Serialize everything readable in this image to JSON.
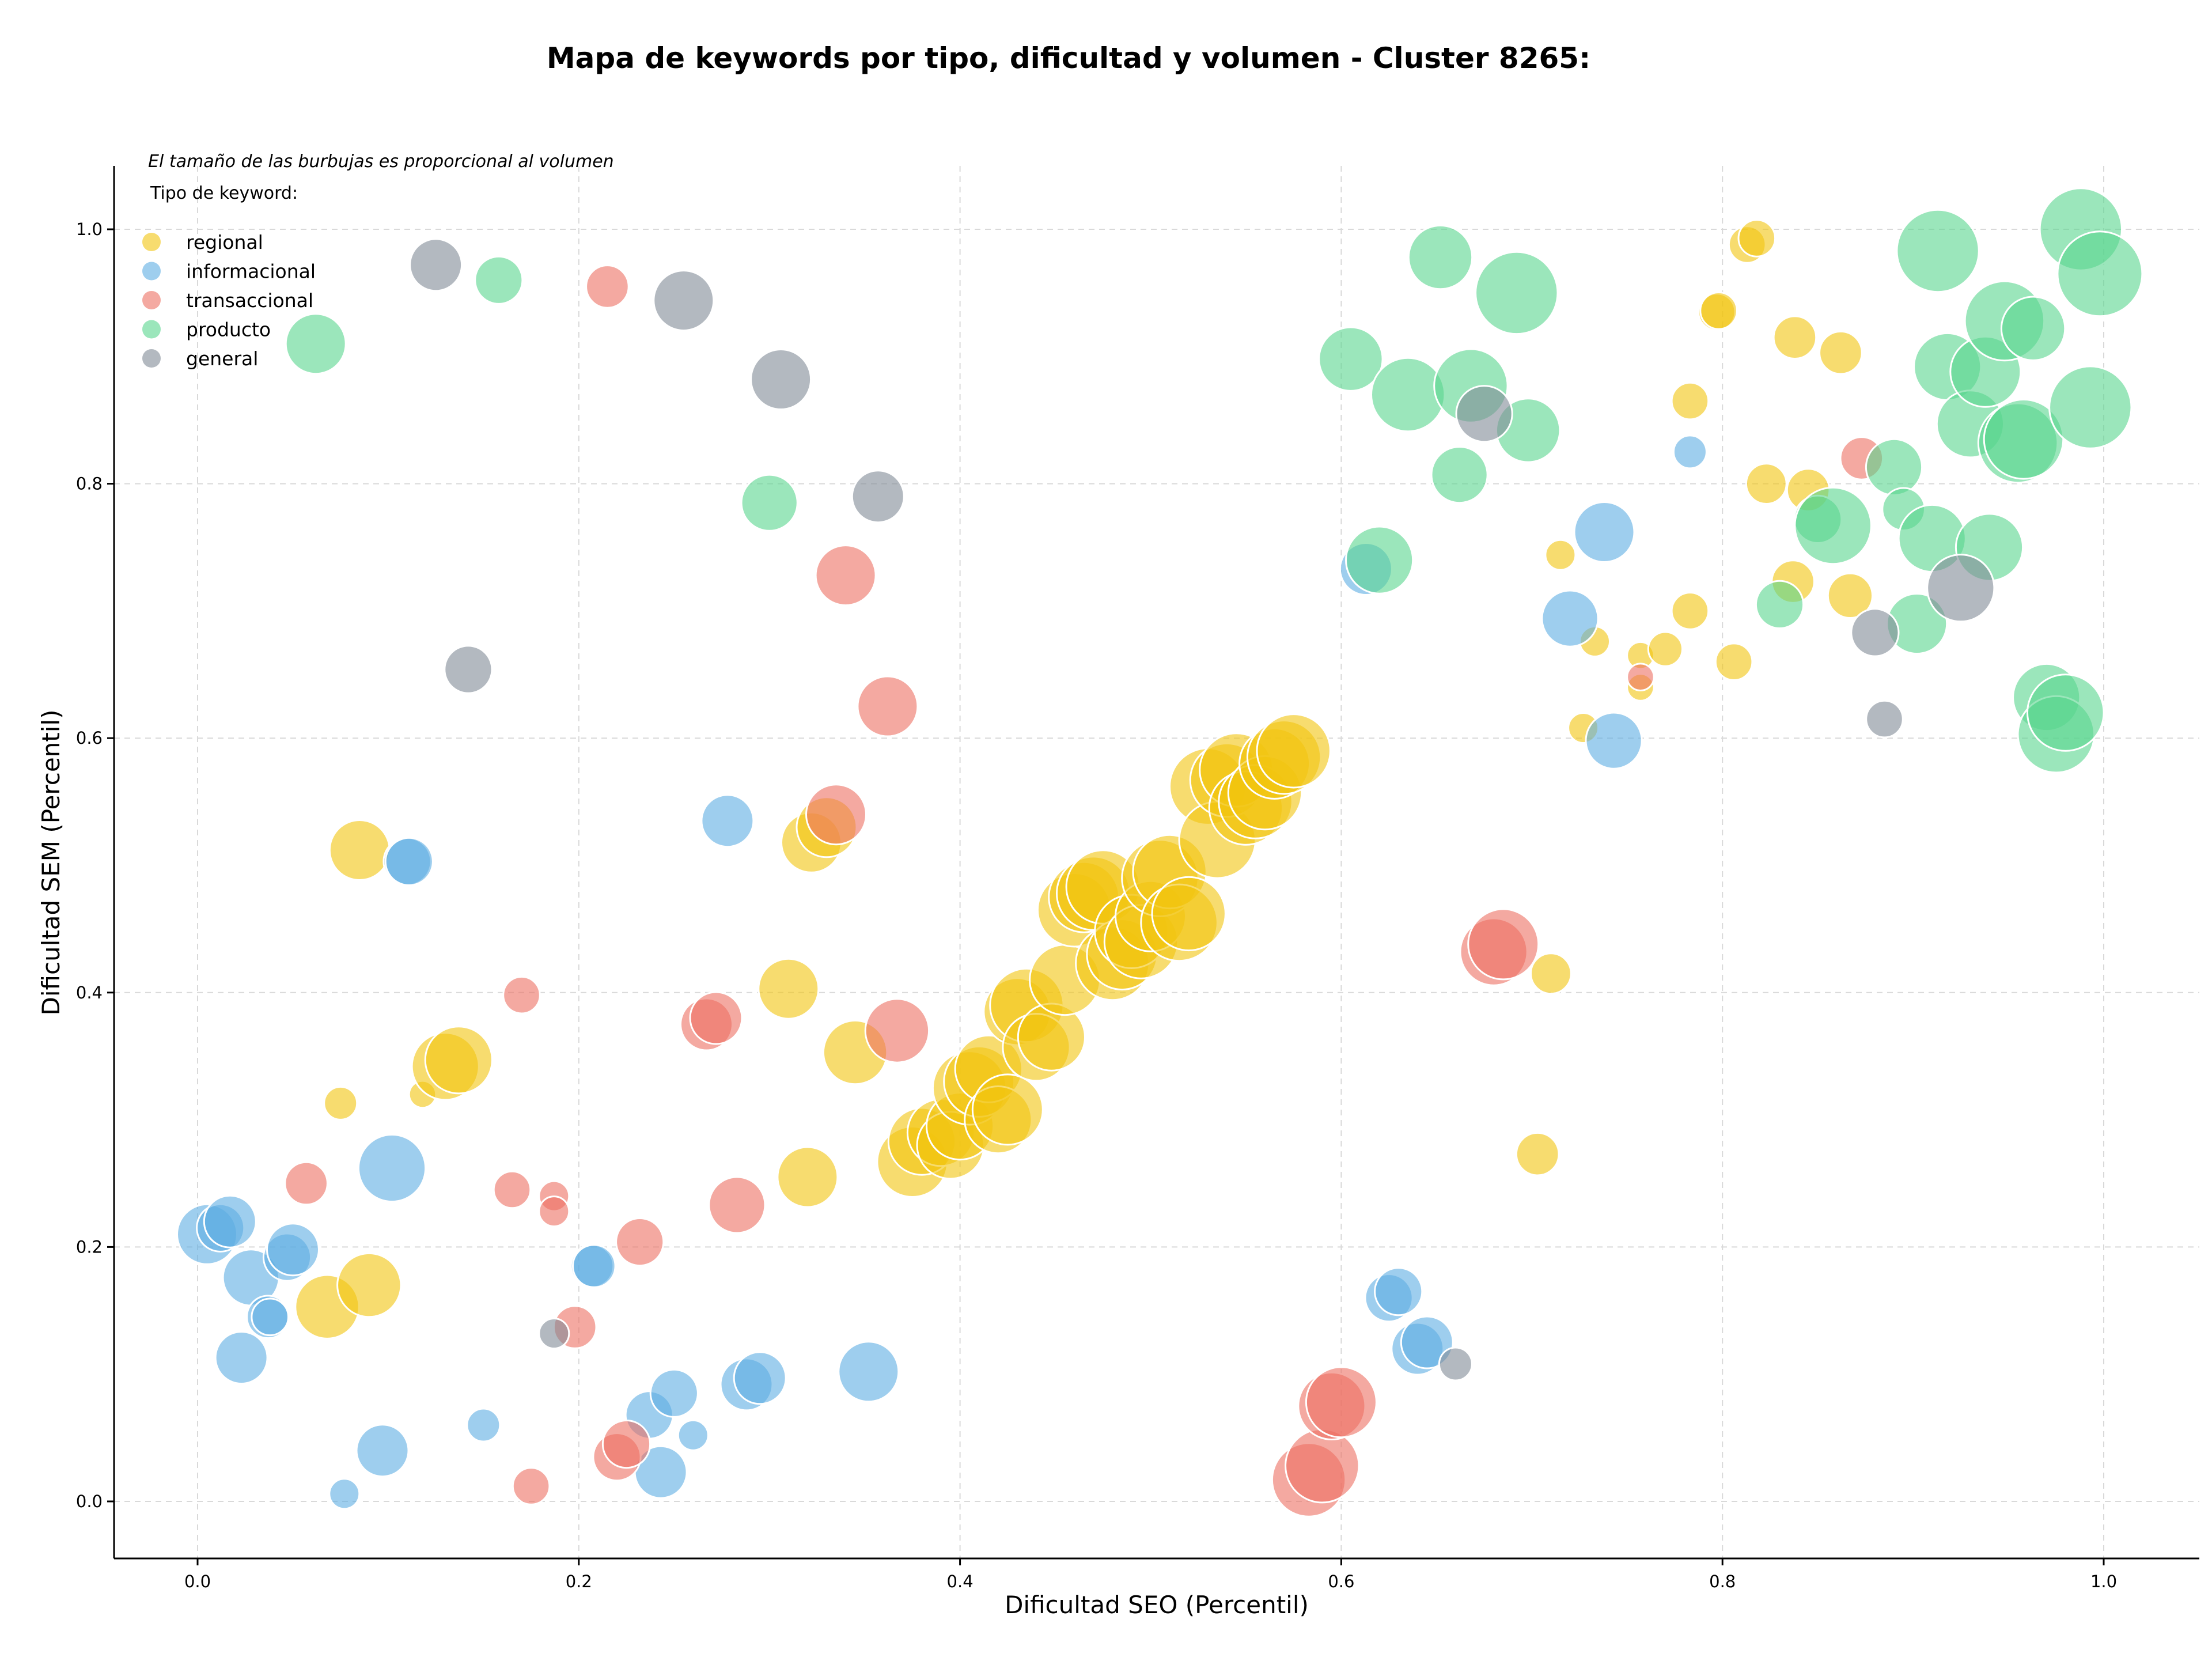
{
  "chart_data": {
    "type": "scatter",
    "title": "Mapa de keywords por tipo, dificultad y volumen - Cluster 8265:",
    "xlabel": "Dificultad SEO (Percentil)",
    "ylabel": "Dificultad SEM (Percentil)",
    "xlim": [
      -0.045,
      1.05
    ],
    "ylim": [
      -0.045,
      1.05
    ],
    "xticks": [
      0.0,
      0.2,
      0.4,
      0.6,
      0.8,
      1.0
    ],
    "yticks": [
      0.0,
      0.2,
      0.4,
      0.6,
      0.8,
      1.0
    ],
    "xtick_labels": [
      "0.0",
      "0.2",
      "0.4",
      "0.6",
      "0.8",
      "1.0"
    ],
    "ytick_labels": [
      "0.0",
      "0.2",
      "0.4",
      "0.6",
      "0.8",
      "1.0"
    ],
    "grid": true,
    "note": "El tamaño de las burbujas es proporcional al volumen",
    "legend_title": "Tipo de keyword:",
    "legend_position": "top-left",
    "series": [
      {
        "name": "regional",
        "color": "#F1C40F",
        "points": [
          [
            0.085,
            0.512,
            4
          ],
          [
            0.068,
            0.153,
            4.5
          ],
          [
            0.09,
            0.17,
            4.5
          ],
          [
            0.075,
            0.313,
            1.2
          ],
          [
            0.118,
            0.32,
            0.8
          ],
          [
            0.13,
            0.342,
            5
          ],
          [
            0.137,
            0.347,
            5
          ],
          [
            0.31,
            0.403,
            4
          ],
          [
            0.32,
            0.255,
            4
          ],
          [
            0.322,
            0.518,
            4
          ],
          [
            0.33,
            0.53,
            4
          ],
          [
            0.345,
            0.353,
            4.5
          ],
          [
            0.375,
            0.267,
            5.5
          ],
          [
            0.38,
            0.283,
            5
          ],
          [
            0.39,
            0.29,
            5
          ],
          [
            0.395,
            0.28,
            5
          ],
          [
            0.4,
            0.295,
            5
          ],
          [
            0.405,
            0.325,
            6
          ],
          [
            0.41,
            0.33,
            5.5
          ],
          [
            0.415,
            0.34,
            5
          ],
          [
            0.42,
            0.3,
            5
          ],
          [
            0.425,
            0.308,
            5.5
          ],
          [
            0.43,
            0.385,
            5
          ],
          [
            0.435,
            0.39,
            6
          ],
          [
            0.44,
            0.357,
            5
          ],
          [
            0.448,
            0.365,
            5
          ],
          [
            0.455,
            0.41,
            5.5
          ],
          [
            0.46,
            0.465,
            6
          ],
          [
            0.465,
            0.475,
            5.5
          ],
          [
            0.47,
            0.478,
            6
          ],
          [
            0.475,
            0.483,
            6
          ],
          [
            0.48,
            0.423,
            6
          ],
          [
            0.485,
            0.43,
            5.5
          ],
          [
            0.49,
            0.448,
            6
          ],
          [
            0.495,
            0.44,
            6
          ],
          [
            0.5,
            0.46,
            5.5
          ],
          [
            0.505,
            0.49,
            6.5
          ],
          [
            0.51,
            0.495,
            6
          ],
          [
            0.515,
            0.455,
            6.5
          ],
          [
            0.52,
            0.462,
            6
          ],
          [
            0.53,
            0.562,
            6.5
          ],
          [
            0.535,
            0.52,
            6.5
          ],
          [
            0.54,
            0.567,
            6
          ],
          [
            0.545,
            0.575,
            6
          ],
          [
            0.55,
            0.545,
            6
          ],
          [
            0.555,
            0.55,
            6
          ],
          [
            0.56,
            0.557,
            6
          ],
          [
            0.565,
            0.58,
            5.5
          ],
          [
            0.57,
            0.585,
            6
          ],
          [
            0.575,
            0.59,
            6
          ],
          [
            0.71,
            0.415,
            1.8
          ],
          [
            0.703,
            0.273,
            2
          ],
          [
            0.715,
            0.744,
            1
          ],
          [
            0.727,
            0.608,
            1
          ],
          [
            0.733,
            0.676,
            1
          ],
          [
            0.757,
            0.665,
            0.8
          ],
          [
            0.757,
            0.64,
            0.8
          ],
          [
            0.77,
            0.67,
            1.3
          ],
          [
            0.783,
            0.7,
            1.5
          ],
          [
            0.783,
            0.865,
            1.5
          ],
          [
            0.797,
            0.935,
            1.5
          ],
          [
            0.798,
            0.936,
            1.5
          ],
          [
            0.806,
            0.66,
            1.5
          ],
          [
            0.813,
            0.988,
            1.5
          ],
          [
            0.818,
            0.993,
            1.5
          ],
          [
            0.823,
            0.8,
            1.8
          ],
          [
            0.837,
            0.723,
            2
          ],
          [
            0.838,
            0.915,
            2
          ],
          [
            0.845,
            0.795,
            2
          ],
          [
            0.862,
            0.903,
            2
          ],
          [
            0.867,
            0.712,
            2.2
          ]
        ]
      },
      {
        "name": "informacional",
        "color": "#5DADE2",
        "points": [
          [
            0.005,
            0.21,
            4
          ],
          [
            0.012,
            0.215,
            2.5
          ],
          [
            0.017,
            0.22,
            3
          ],
          [
            0.023,
            0.113,
            3
          ],
          [
            0.028,
            0.176,
            3.5
          ],
          [
            0.037,
            0.145,
            2
          ],
          [
            0.038,
            0.145,
            1.5
          ],
          [
            0.047,
            0.192,
            2.5
          ],
          [
            0.05,
            0.198,
            3
          ],
          [
            0.077,
            0.006,
            1
          ],
          [
            0.097,
            0.04,
            3
          ],
          [
            0.102,
            0.262,
            5
          ],
          [
            0.11,
            0.503,
            2.5
          ],
          [
            0.111,
            0.503,
            2.5
          ],
          [
            0.15,
            0.06,
            1.2
          ],
          [
            0.207,
            0.185,
            2
          ],
          [
            0.208,
            0.185,
            2
          ],
          [
            0.237,
            0.068,
            2.5
          ],
          [
            0.243,
            0.023,
            3
          ],
          [
            0.25,
            0.085,
            2.5
          ],
          [
            0.26,
            0.052,
            1
          ],
          [
            0.278,
            0.535,
            3
          ],
          [
            0.288,
            0.092,
            3
          ],
          [
            0.295,
            0.097,
            3
          ],
          [
            0.352,
            0.102,
            4
          ],
          [
            0.613,
            0.733,
            3
          ],
          [
            0.625,
            0.16,
            2.5
          ],
          [
            0.63,
            0.165,
            2.5
          ],
          [
            0.64,
            0.12,
            3
          ],
          [
            0.645,
            0.125,
            3
          ],
          [
            0.72,
            0.694,
            3.5
          ],
          [
            0.738,
            0.762,
            4
          ],
          [
            0.743,
            0.598,
            3.5
          ],
          [
            0.783,
            0.825,
            1.2
          ]
        ]
      },
      {
        "name": "transaccional",
        "color": "#EC7063",
        "points": [
          [
            0.057,
            0.25,
            2
          ],
          [
            0.165,
            0.245,
            1.5
          ],
          [
            0.17,
            0.398,
            1.5
          ],
          [
            0.175,
            0.012,
            1.5
          ],
          [
            0.187,
            0.24,
            1
          ],
          [
            0.187,
            0.228,
            1
          ],
          [
            0.198,
            0.137,
            2
          ],
          [
            0.215,
            0.955,
            2
          ],
          [
            0.22,
            0.035,
            2.5
          ],
          [
            0.225,
            0.045,
            2.5
          ],
          [
            0.232,
            0.204,
            2.5
          ],
          [
            0.267,
            0.375,
            3
          ],
          [
            0.272,
            0.38,
            3
          ],
          [
            0.283,
            0.233,
            3.5
          ],
          [
            0.335,
            0.54,
            4
          ],
          [
            0.34,
            0.728,
            4
          ],
          [
            0.362,
            0.625,
            4
          ],
          [
            0.367,
            0.37,
            4.5
          ],
          [
            0.583,
            0.017,
            6
          ],
          [
            0.59,
            0.028,
            6
          ],
          [
            0.595,
            0.075,
            5
          ],
          [
            0.6,
            0.078,
            5.5
          ],
          [
            0.68,
            0.432,
            5
          ],
          [
            0.685,
            0.438,
            5.5
          ],
          [
            0.757,
            0.648,
            0.8
          ],
          [
            0.873,
            0.82,
            2
          ]
        ]
      },
      {
        "name": "producto",
        "color": "#58D68D",
        "points": [
          [
            0.062,
            0.91,
            4
          ],
          [
            0.158,
            0.96,
            2.5
          ],
          [
            0.3,
            0.785,
            3.5
          ],
          [
            0.605,
            0.898,
            4.5
          ],
          [
            0.62,
            0.74,
            5
          ],
          [
            0.635,
            0.87,
            6
          ],
          [
            0.652,
            0.978,
            4.5
          ],
          [
            0.662,
            0.807,
            3.5
          ],
          [
            0.668,
            0.877,
            6
          ],
          [
            0.692,
            0.95,
            7.5
          ],
          [
            0.698,
            0.842,
            4.5
          ],
          [
            0.83,
            0.705,
            2.5
          ],
          [
            0.85,
            0.772,
            2.5
          ],
          [
            0.858,
            0.767,
            6.5
          ],
          [
            0.89,
            0.813,
            3.5
          ],
          [
            0.895,
            0.78,
            2
          ],
          [
            0.902,
            0.69,
            4
          ],
          [
            0.91,
            0.757,
            5
          ],
          [
            0.913,
            0.983,
            7.5
          ],
          [
            0.918,
            0.892,
            5
          ],
          [
            0.93,
            0.847,
            5
          ],
          [
            0.938,
            0.888,
            5.5
          ],
          [
            0.94,
            0.75,
            5
          ],
          [
            0.948,
            0.928,
            7
          ],
          [
            0.955,
            0.832,
            7
          ],
          [
            0.958,
            0.835,
            7
          ],
          [
            0.963,
            0.922,
            4.5
          ],
          [
            0.97,
            0.632,
            5
          ],
          [
            0.975,
            0.603,
            6.5
          ],
          [
            0.98,
            0.62,
            6.5
          ],
          [
            0.988,
            1.0,
            7.5
          ],
          [
            0.993,
            0.86,
            7.5
          ],
          [
            0.998,
            0.965,
            8
          ]
        ]
      },
      {
        "name": "general",
        "color": "#808B96",
        "points": [
          [
            0.125,
            0.972,
            3
          ],
          [
            0.142,
            0.654,
            2.5
          ],
          [
            0.187,
            0.132,
            1
          ],
          [
            0.255,
            0.944,
            4
          ],
          [
            0.306,
            0.882,
            4
          ],
          [
            0.357,
            0.79,
            3
          ],
          [
            0.66,
            0.108,
            1.2
          ],
          [
            0.675,
            0.855,
            3.5
          ],
          [
            0.88,
            0.683,
            2.5
          ],
          [
            0.885,
            0.615,
            1.5
          ],
          [
            0.925,
            0.718,
            5
          ]
        ]
      }
    ]
  }
}
